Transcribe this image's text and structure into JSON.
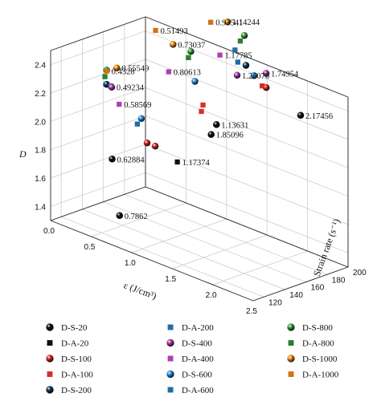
{
  "chart_data": {
    "type": "scatter3d",
    "title": "",
    "xlabel": "ε (J/cm³)",
    "ylabel": "Strain rate (s⁻¹)",
    "zlabel": "D",
    "xlim": [
      0,
      2.5
    ],
    "ylim": [
      110,
      200
    ],
    "zlim": [
      1.3,
      2.5
    ],
    "x_ticks": [
      "0.0",
      "0.5",
      "1.0",
      "1.5",
      "2.0",
      "2.5"
    ],
    "y_ticks": [
      "120",
      "140",
      "160",
      "180",
      "200"
    ],
    "z_ticks": [
      "1.4",
      "1.6",
      "1.8",
      "2.0",
      "2.2",
      "2.4"
    ],
    "grid": true,
    "legend_placement": "bottom",
    "series": [
      {
        "name": "D-S-20",
        "marker": "sphere",
        "color": "#111111",
        "points": [
          {
            "x": 0.62884,
            "y": 120,
            "z": 1.85,
            "label": "0.62884"
          },
          {
            "x": 0.7862,
            "y": 115,
            "z": 1.5,
            "label": "0.7862"
          },
          {
            "x": 1.13631,
            "y": 180,
            "z": 2.05,
            "label": "1.13631"
          },
          {
            "x": 2.17456,
            "y": 180,
            "z": 2.35,
            "label": "2.17456"
          },
          {
            "x": 1.85096,
            "y": 120,
            "z": 2.3,
            "label": "1.85096"
          }
        ]
      },
      {
        "name": "D-A-20",
        "marker": "square",
        "color": "#111111",
        "points": [
          {
            "x": 1.17374,
            "y": 140,
            "z": 1.9,
            "label": "1.17374"
          }
        ]
      },
      {
        "name": "D-S-100",
        "marker": "sphere",
        "color": "#d32f2f",
        "points": [
          {
            "x": 0.8,
            "y": 140,
            "z": 1.95
          },
          {
            "x": 0.9,
            "y": 140,
            "z": 1.95
          },
          {
            "x": 1.75,
            "y": 180,
            "z": 2.45
          }
        ]
      },
      {
        "name": "D-A-100",
        "marker": "square",
        "color": "#d32f2f",
        "points": [
          {
            "x": 0.95,
            "y": 180,
            "z": 2.1
          },
          {
            "x": 0.97,
            "y": 180,
            "z": 2.15
          },
          {
            "x": 1.7,
            "y": 180,
            "z": 2.45
          }
        ]
      },
      {
        "name": "D-S-200",
        "marker": "sphere",
        "color": "#0f3a56",
        "points": [
          {
            "x": 0.3,
            "y": 140,
            "z": 2.25
          },
          {
            "x": 1.5,
            "y": 180,
            "z": 2.55
          }
        ]
      },
      {
        "name": "D-A-200",
        "marker": "square",
        "color": "#1f6f9e",
        "points": [
          {
            "x": 0.35,
            "y": 140,
            "z": 2.25
          },
          {
            "x": 1.4,
            "y": 180,
            "z": 2.55
          }
        ]
      },
      {
        "name": "D-S-400",
        "marker": "sphere",
        "color": "#b03fb0",
        "points": [
          {
            "x": 0.49234,
            "y": 130,
            "z": 2.3,
            "label": "0.49234"
          },
          {
            "x": 1.26076,
            "y": 190,
            "z": 2.4,
            "label": "1.26076"
          },
          {
            "x": 1.74954,
            "y": 180,
            "z": 2.55,
            "label": "1.74954"
          }
        ]
      },
      {
        "name": "D-A-400",
        "marker": "square",
        "color": "#b03fb0",
        "points": [
          {
            "x": 0.58569,
            "y": 130,
            "z": 2.2,
            "label": "0.58569"
          },
          {
            "x": 0.80613,
            "y": 160,
            "z": 2.4,
            "label": "0.80613"
          },
          {
            "x": 1.17785,
            "y": 180,
            "z": 2.55,
            "label": "1.17785"
          }
        ]
      },
      {
        "name": "D-S-600",
        "marker": "sphere",
        "color": "#2f8fdc",
        "points": [
          {
            "x": 0.6,
            "y": 150,
            "z": 2.05
          },
          {
            "x": 1.0,
            "y": 170,
            "z": 2.35
          },
          {
            "x": 1.6,
            "y": 180,
            "z": 2.5
          }
        ]
      },
      {
        "name": "D-A-600",
        "marker": "square",
        "color": "#1f6f9e",
        "points": [
          {
            "x": 0.55,
            "y": 150,
            "z": 2.0
          },
          {
            "x": 1.3,
            "y": 185,
            "z": 2.6
          }
        ]
      },
      {
        "name": "D-S-800",
        "marker": "sphere",
        "color": "#3f9f3f",
        "points": [
          {
            "x": 0.3,
            "y": 140,
            "z": 2.35
          },
          {
            "x": 0.95,
            "y": 170,
            "z": 2.55
          },
          {
            "x": 1.35,
            "y": 190,
            "z": 2.7
          }
        ]
      },
      {
        "name": "D-A-800",
        "marker": "square",
        "color": "#2e7d32",
        "points": [
          {
            "x": 0.28,
            "y": 140,
            "z": 2.3
          },
          {
            "x": 0.92,
            "y": 170,
            "z": 2.5
          },
          {
            "x": 1.3,
            "y": 190,
            "z": 2.65
          }
        ]
      },
      {
        "name": "D-S-1000",
        "marker": "sphere",
        "color": "#f0901f",
        "points": [
          {
            "x": 0.55549,
            "y": 130,
            "z": 2.45,
            "label": "0.55549"
          },
          {
            "x": 0.73037,
            "y": 170,
            "z": 2.55,
            "label": "0.73037"
          },
          {
            "x": 1.14244,
            "y": 190,
            "z": 2.75,
            "label": "1.14244"
          }
        ]
      },
      {
        "name": "D-A-1000",
        "marker": "square",
        "color": "#d0731a",
        "points": [
          {
            "x": 0.4328,
            "y": 130,
            "z": 2.4,
            "label": "0.4328"
          },
          {
            "x": 0.51493,
            "y": 170,
            "z": 2.6,
            "label": "0.51493"
          },
          {
            "x": 0.93541,
            "y": 190,
            "z": 2.7,
            "label": "0.93541"
          }
        ]
      }
    ]
  }
}
